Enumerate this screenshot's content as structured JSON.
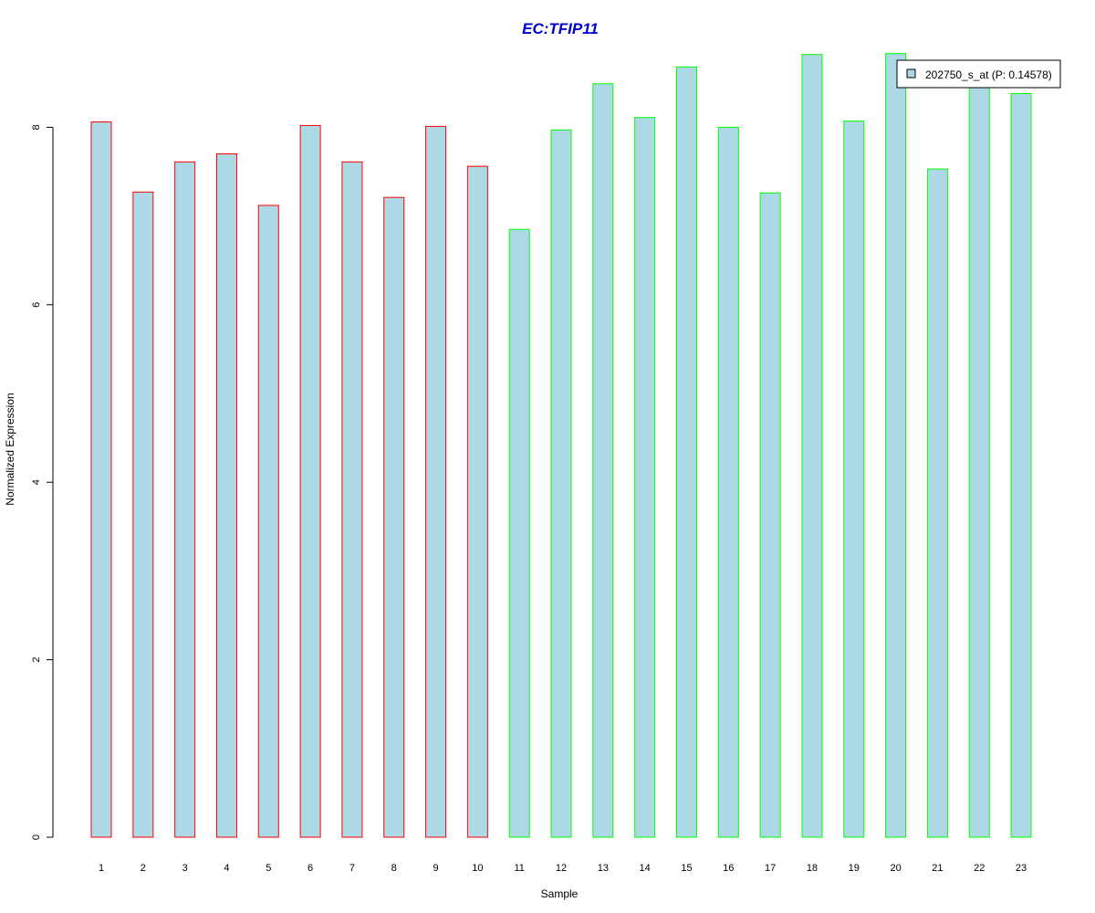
{
  "chart_data": {
    "type": "bar",
    "title": "EC:TFIP11",
    "xlabel": "Sample",
    "ylabel": "Normalized Expression",
    "categories": [
      "1",
      "2",
      "3",
      "4",
      "5",
      "6",
      "7",
      "8",
      "9",
      "10",
      "11",
      "12",
      "13",
      "14",
      "15",
      "16",
      "17",
      "18",
      "19",
      "20",
      "21",
      "22",
      "23"
    ],
    "values": [
      8.06,
      7.27,
      7.61,
      7.7,
      7.12,
      8.02,
      7.61,
      7.21,
      8.01,
      7.56,
      6.85,
      7.97,
      8.49,
      8.11,
      8.68,
      8.0,
      7.26,
      8.82,
      8.07,
      8.83,
      7.53,
      8.45,
      8.38
    ],
    "border_colors": [
      "#ff0000",
      "#ff0000",
      "#ff0000",
      "#ff0000",
      "#ff0000",
      "#ff0000",
      "#ff0000",
      "#ff0000",
      "#ff0000",
      "#ff0000",
      "#00ff00",
      "#00ff00",
      "#00ff00",
      "#00ff00",
      "#00ff00",
      "#00ff00",
      "#00ff00",
      "#00ff00",
      "#00ff00",
      "#00ff00",
      "#00ff00",
      "#00ff00",
      "#00ff00"
    ],
    "bar_fill": "#add8e6",
    "title_color": "#0000cc",
    "yticks": [
      0,
      2,
      4,
      6,
      8
    ],
    "ylim": [
      0,
      8.83
    ],
    "grid": false,
    "legend": {
      "label": "202750_s_at (P: 0.14578)",
      "placement": "top-right"
    }
  }
}
